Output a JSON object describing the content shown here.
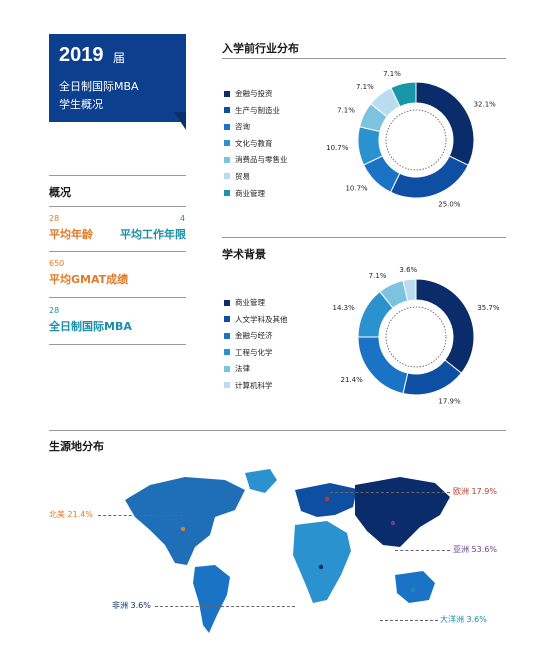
{
  "header": {
    "year": "2019",
    "year_suffix": "届",
    "line2": "全日制国际MBA",
    "line3": "学生概况"
  },
  "overview": {
    "title": "概况",
    "avg_age_value": "28",
    "avg_age_label": "平均年龄",
    "avg_work_value": "4",
    "avg_work_label": "平均工作年限",
    "gmat_value": "650",
    "gmat_label": "平均GMAT成绩",
    "mba_value": "28",
    "mba_label": "全日制国际MBA"
  },
  "colors": {
    "c1": "#0b2c6b",
    "c2": "#0f4fa3",
    "c3": "#1a73c4",
    "c4": "#2a93cf",
    "c5": "#7cc3e0",
    "c6": "#b9dcee",
    "c7": "#1797a8",
    "orange": "#e07b2c",
    "teal": "#1a8fa8",
    "red": "#c0392b",
    "purple": "#6a3f8f"
  },
  "chart_data": [
    {
      "type": "pie",
      "title": "入学前行业分布",
      "categories": [
        "金融与投资",
        "生产与制造业",
        "咨询",
        "文化与教育",
        "消费品与零售业",
        "贸易",
        "商业管理"
      ],
      "values": [
        32.1,
        25.0,
        10.7,
        10.7,
        7.1,
        7.1,
        7.1
      ],
      "labels": [
        "32.1%",
        "25.0%",
        "10.7%",
        "10.7%",
        "7.1%",
        "7.1%",
        "7.1%"
      ],
      "colors": [
        "#0b2c6b",
        "#0f4fa3",
        "#1a73c4",
        "#2a93cf",
        "#7cc3e0",
        "#b9dcee",
        "#1797a8"
      ],
      "legend": "left"
    },
    {
      "type": "pie",
      "title": "学术背景",
      "categories": [
        "商业管理",
        "人文学科及其他",
        "金融与经济",
        "工程与化学",
        "法律",
        "计算机科学"
      ],
      "values": [
        35.7,
        17.9,
        21.4,
        14.3,
        7.1,
        3.6
      ],
      "labels": [
        "35.7%",
        "17.9%",
        "21.4%",
        "14.3%",
        "7.1%",
        "3.6%"
      ],
      "colors": [
        "#0b2c6b",
        "#0f4fa3",
        "#1a73c4",
        "#2a93cf",
        "#7cc3e0",
        "#b9dcee"
      ],
      "legend": "left"
    },
    {
      "type": "map",
      "title": "生源地分布",
      "regions": [
        {
          "name": "北美",
          "value": 21.4,
          "label": "21.4%"
        },
        {
          "name": "欧洲",
          "value": 17.9,
          "label": "17.9%"
        },
        {
          "name": "亚洲",
          "value": 53.6,
          "label": "53.6%"
        },
        {
          "name": "非洲",
          "value": 3.6,
          "label": "3.6%"
        },
        {
          "name": "大洋洲",
          "value": 3.6,
          "label": "3.6%"
        }
      ]
    }
  ]
}
